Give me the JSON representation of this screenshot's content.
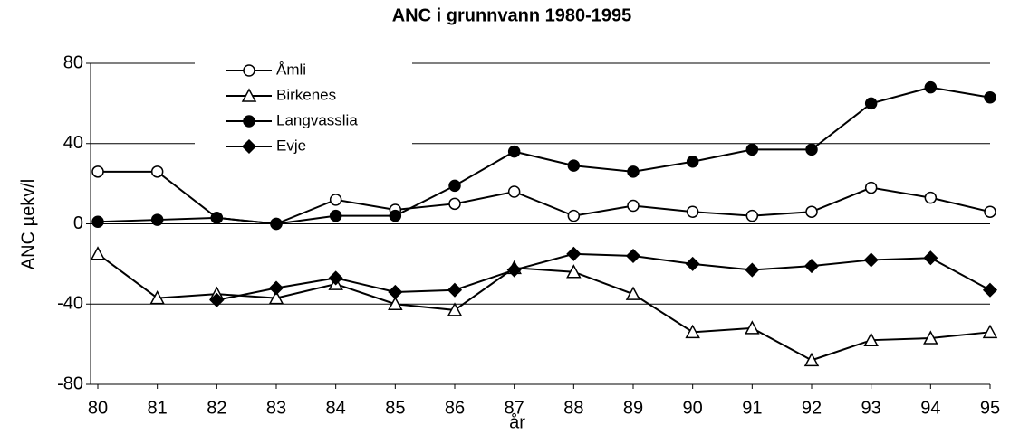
{
  "chart_data": {
    "type": "line",
    "title": "ANC i grunnvann 1980-1995",
    "x_label": "år",
    "y_label": "ANC µekv/l",
    "categories": [
      "80",
      "81",
      "82",
      "83",
      "84",
      "85",
      "86",
      "87",
      "88",
      "89",
      "90",
      "91",
      "92",
      "93",
      "94",
      "95"
    ],
    "ylim": [
      -80,
      80
    ],
    "yticks": [
      -80,
      -40,
      0,
      40,
      80
    ],
    "grid": true,
    "legend": "upper left",
    "series": [
      {
        "name": "Åmli",
        "color": "#000000",
        "marker": "open-circle",
        "values": [
          26,
          26,
          3,
          0,
          12,
          7,
          10,
          16,
          4,
          9,
          6,
          4,
          6,
          18,
          13,
          6
        ]
      },
      {
        "name": "Birkenes",
        "color": "#000000",
        "marker": "open-triangle",
        "values": [
          -15,
          -37,
          -35,
          -37,
          -30,
          -40,
          -43,
          -22,
          -24,
          -35,
          -54,
          -52,
          -68,
          -58,
          -57,
          -54
        ]
      },
      {
        "name": "Langvasslia",
        "color": "#000000",
        "marker": "filled-circle",
        "values": [
          1,
          2,
          3,
          0,
          4,
          4,
          19,
          36,
          29,
          26,
          31,
          37,
          37,
          60,
          68,
          63
        ]
      },
      {
        "name": "Evje",
        "color": "#000000",
        "marker": "filled-diamond",
        "values": [
          null,
          null,
          -38,
          -32,
          -27,
          -34,
          -33,
          -23,
          -15,
          -16,
          -20,
          -23,
          -21,
          -18,
          -17,
          -33
        ]
      }
    ]
  }
}
